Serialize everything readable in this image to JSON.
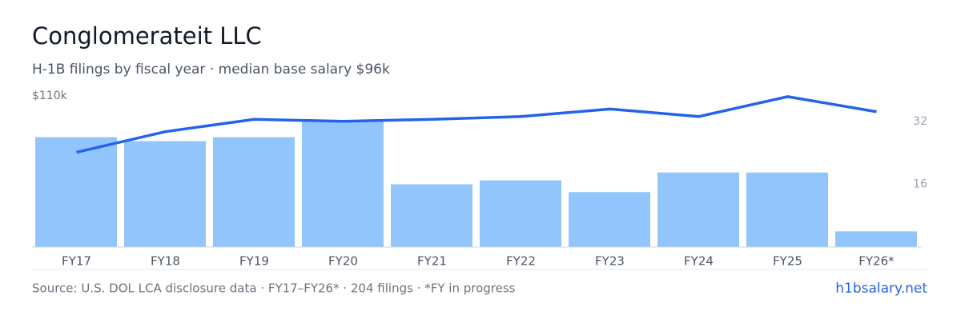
{
  "chart_data": {
    "type": "bar",
    "title": "Conglomerateit LLC",
    "subtitle": "H-1B filings by fiscal year · median base salary $96k",
    "categories": [
      "FY17",
      "FY18",
      "FY19",
      "FY20",
      "FY21",
      "FY22",
      "FY23",
      "FY24",
      "FY25",
      "FY26*"
    ],
    "series": [
      {
        "type": "bar",
        "color": "#93c5fd",
        "axis": "y2",
        "values": [
          28,
          27,
          28,
          32,
          16,
          17,
          14,
          19,
          19,
          4
        ]
      },
      {
        "type": "line",
        "color": "#2563eb",
        "values": [
          69000,
          84000,
          93000,
          91500,
          93000,
          95000,
          100500,
          95000,
          109500,
          98500
        ]
      }
    ],
    "ylim": [
      0,
      110000
    ],
    "yticks": [
      {
        "value": 110000,
        "label": "$110k"
      }
    ],
    "y2lim": [
      0,
      38.5
    ],
    "y2ticks": [
      32,
      16
    ]
  },
  "footer": {
    "source": "Source: U.S. DOL LCA disclosure data · FY17–FY26* · 204 filings · *FY in progress",
    "link": "h1bsalary.net"
  }
}
